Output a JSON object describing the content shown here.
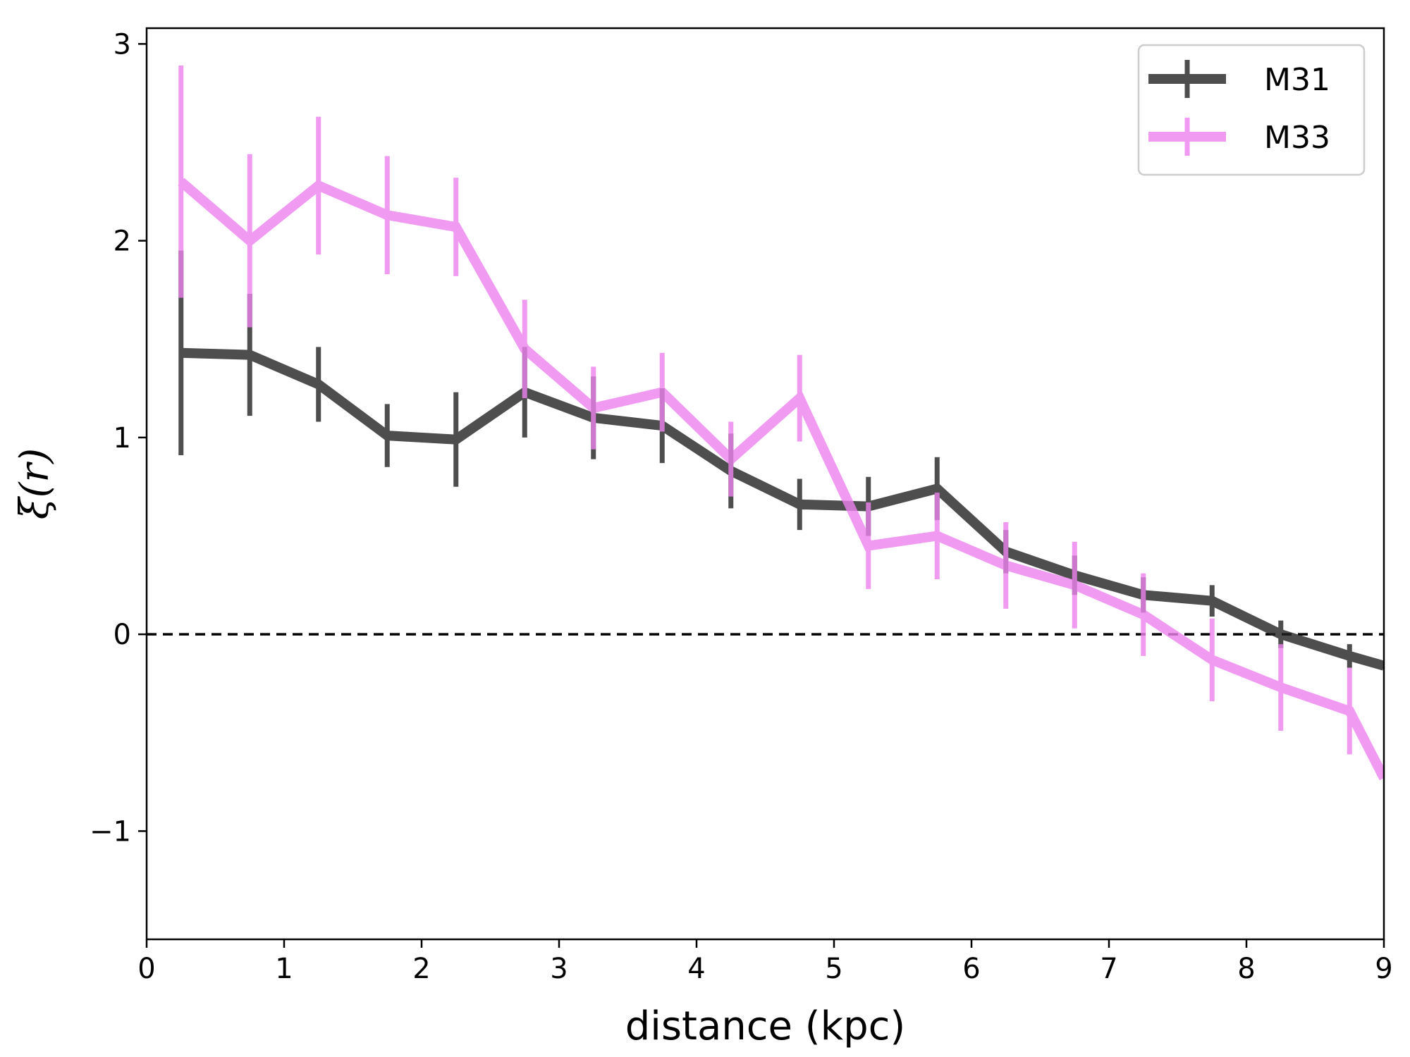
{
  "chart_data": {
    "type": "line",
    "xlabel": "distance (kpc)",
    "ylabel": "ξ(r)",
    "xlim": [
      0,
      9
    ],
    "ylim": [
      -1.55,
      3.08
    ],
    "xticks": [
      0,
      1,
      2,
      3,
      4,
      5,
      6,
      7,
      8,
      9
    ],
    "xtick_labels": [
      "0",
      "1",
      "2",
      "3",
      "4",
      "5",
      "6",
      "7",
      "8",
      "9"
    ],
    "yticks": [
      -1,
      0,
      1,
      2,
      3
    ],
    "ytick_labels": [
      "−1",
      "0",
      "1",
      "2",
      "3"
    ],
    "grid": false,
    "legend_position": "top-right",
    "reference_line": {
      "y": 0,
      "style": "dashed",
      "color": "#000000"
    },
    "series": [
      {
        "name": "M31",
        "color": "#222222",
        "x": [
          0.25,
          0.75,
          1.25,
          1.75,
          2.25,
          2.75,
          3.25,
          3.75,
          4.25,
          4.75,
          5.25,
          5.75,
          6.25,
          6.75,
          7.25,
          7.75,
          8.25,
          8.75,
          9.0
        ],
        "y": [
          1.43,
          1.42,
          1.27,
          1.01,
          0.99,
          1.23,
          1.1,
          1.06,
          0.83,
          0.66,
          0.65,
          0.74,
          0.42,
          0.3,
          0.2,
          0.17,
          0.0,
          -0.11,
          -0.16
        ],
        "yerr": [
          0.52,
          0.31,
          0.19,
          0.16,
          0.24,
          0.23,
          0.21,
          0.19,
          0.19,
          0.13,
          0.15,
          0.16,
          0.11,
          0.1,
          0.09,
          0.08,
          0.07,
          0.06,
          null
        ]
      },
      {
        "name": "M33",
        "color": "#ee82ee",
        "x": [
          0.25,
          0.75,
          1.25,
          1.75,
          2.25,
          2.75,
          3.25,
          3.75,
          4.25,
          4.75,
          5.25,
          5.75,
          6.25,
          6.75,
          7.25,
          7.75,
          8.25,
          8.75,
          9.0
        ],
        "y": [
          2.3,
          2.0,
          2.28,
          2.13,
          2.07,
          1.45,
          1.15,
          1.23,
          0.89,
          1.2,
          0.45,
          0.5,
          0.35,
          0.25,
          0.1,
          -0.13,
          -0.27,
          -0.39,
          -0.73
        ],
        "yerr": [
          0.59,
          0.44,
          0.35,
          0.3,
          0.25,
          0.25,
          0.21,
          0.2,
          0.19,
          0.22,
          0.22,
          0.22,
          0.22,
          0.22,
          0.21,
          0.21,
          0.22,
          0.22,
          null
        ]
      }
    ]
  }
}
